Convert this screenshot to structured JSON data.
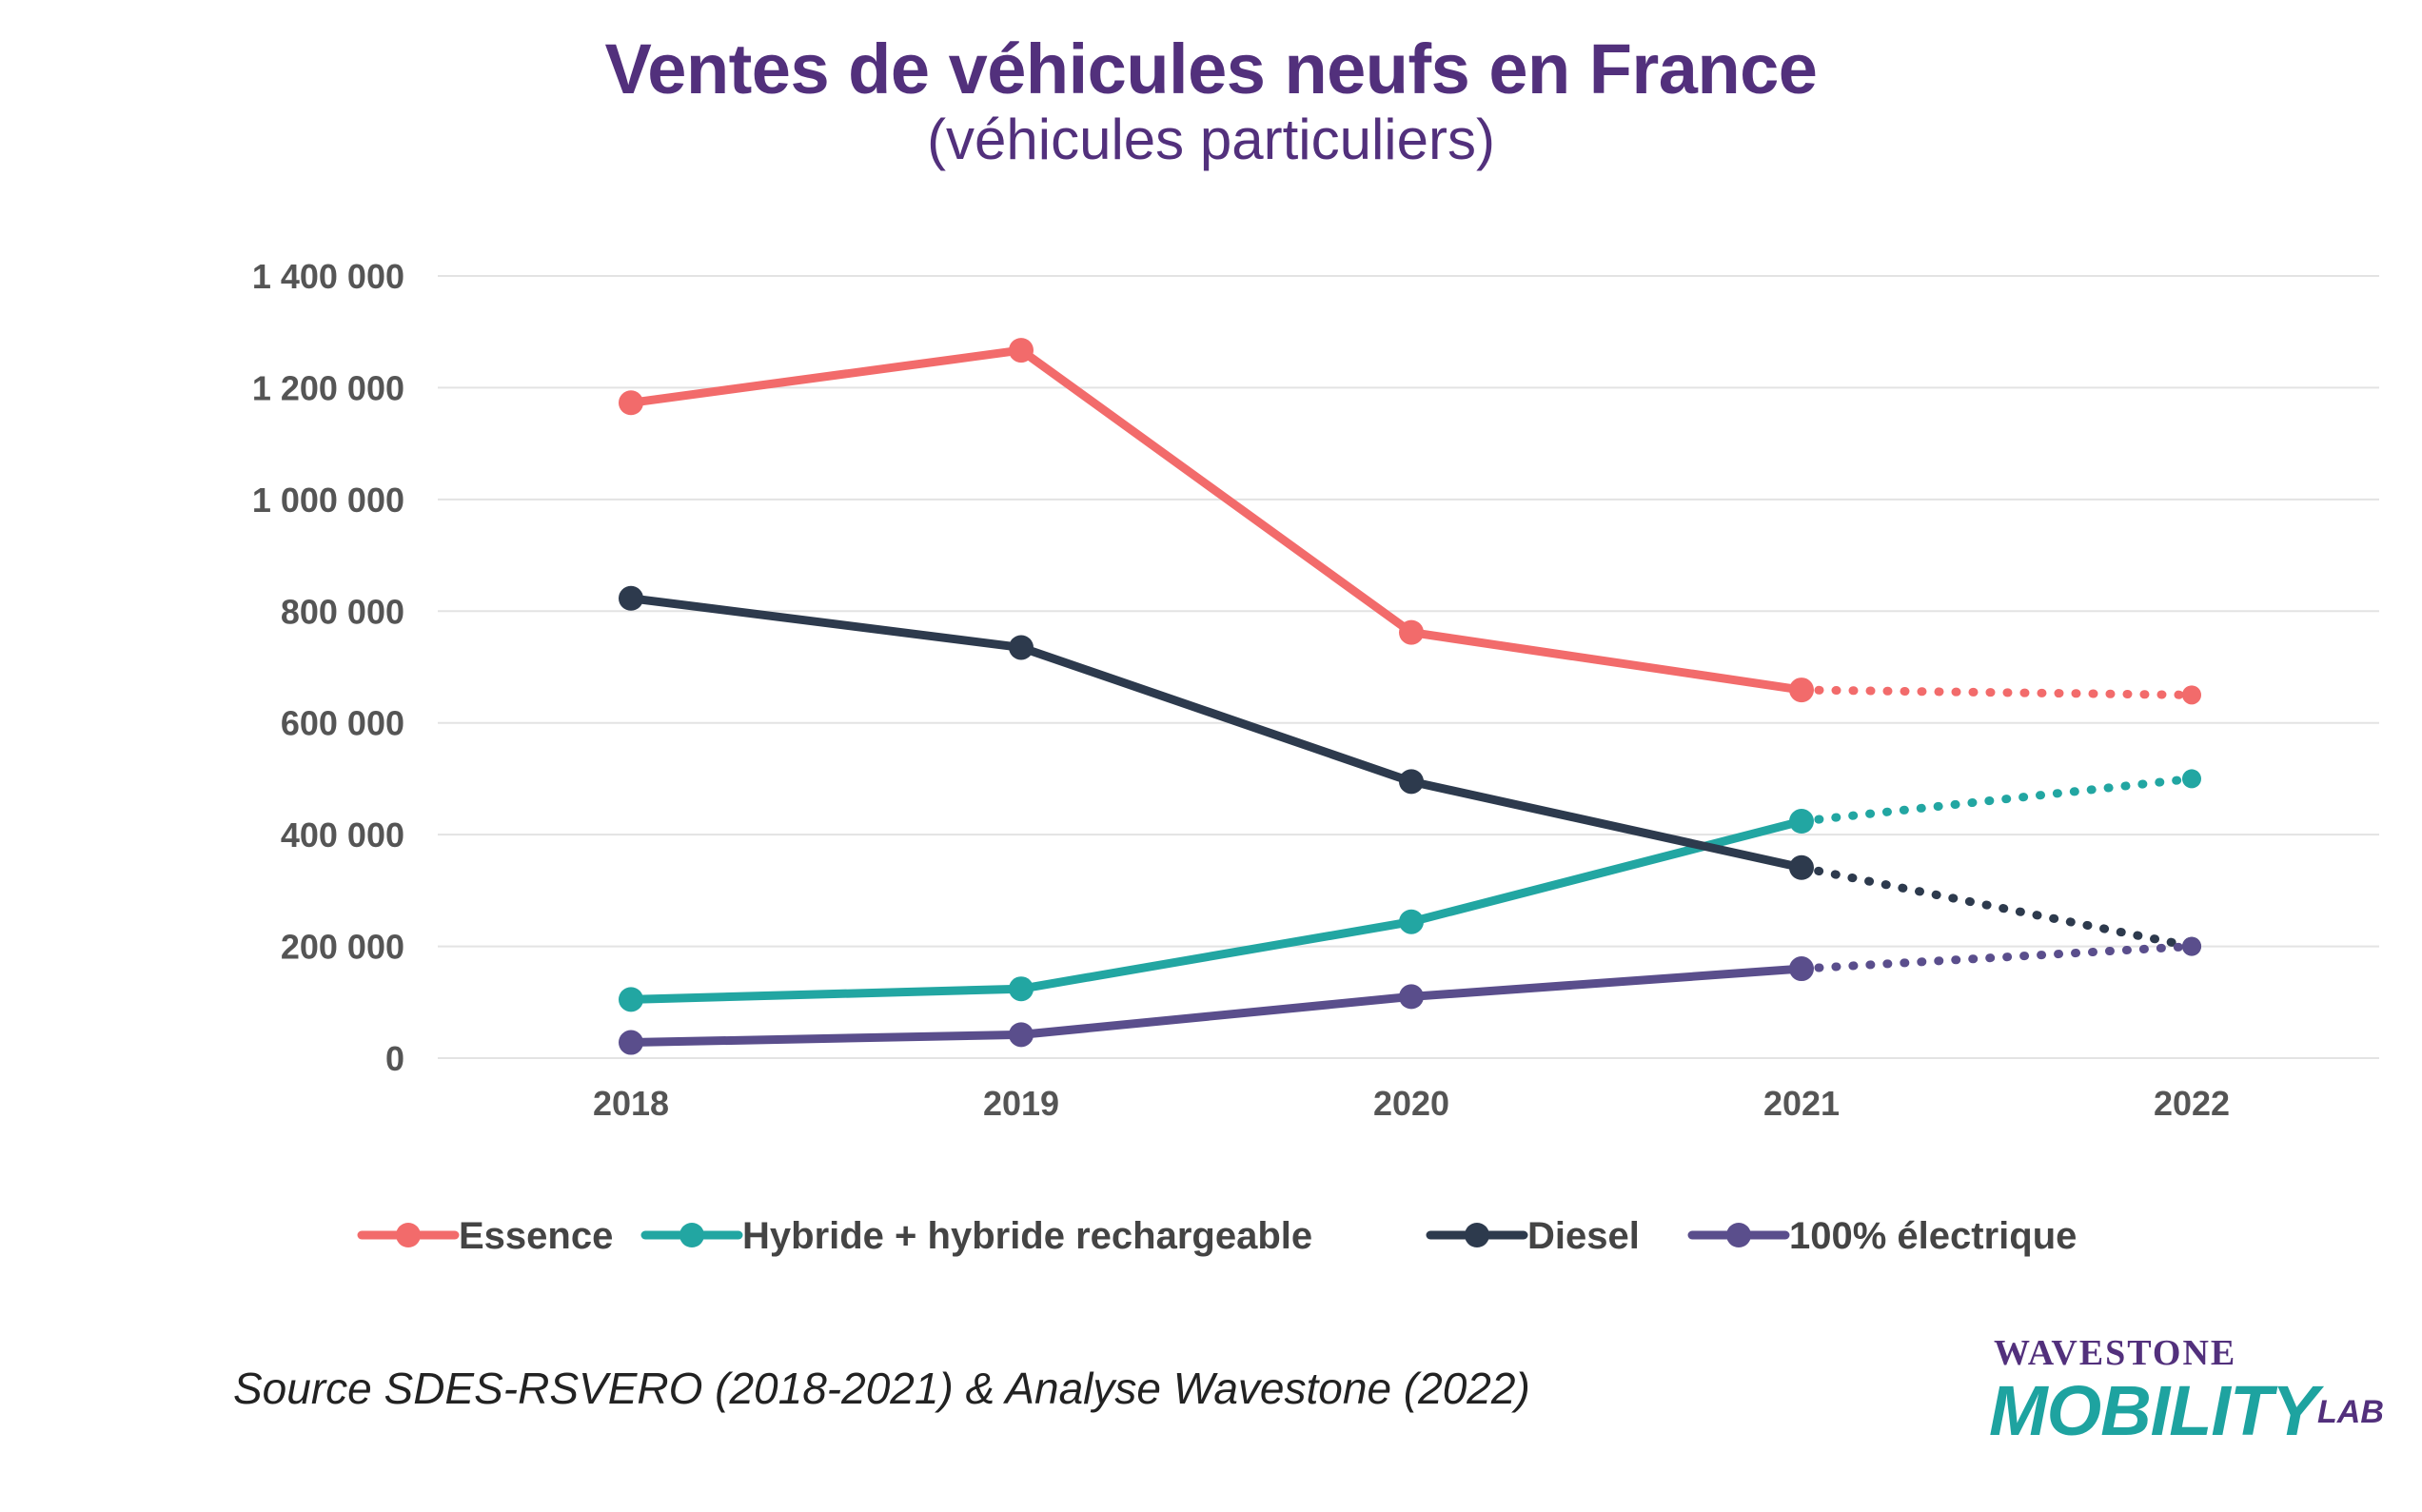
{
  "page": {
    "title": "Ventes de véhicules neufs en France",
    "subtitle": "(véhicules particuliers)",
    "source": "Source SDES-RSVERO (2018-2021) & Analyse Wavestone (2022)",
    "logo": {
      "top": "WAVESTONE",
      "main": "MOBILITY",
      "lab": "LAB"
    }
  },
  "chart_data": {
    "type": "line",
    "title": "Ventes de véhicules neufs en France",
    "subtitle": "(véhicules particuliers)",
    "x": [
      "2018",
      "2019",
      "2020",
      "2021",
      "2022"
    ],
    "ylim": [
      0,
      1400000
    ],
    "yticks": [
      0,
      200000,
      400000,
      600000,
      800000,
      1000000,
      1200000,
      1400000
    ],
    "ytick_labels": [
      "0",
      "200 000",
      "400 000",
      "600 000",
      "800 000",
      "1 000 000",
      "1 200 000",
      "1 400 000"
    ],
    "grid": true,
    "legend_position": "bottom",
    "projection": {
      "from": "2021",
      "to": "2022",
      "style": "dotted"
    },
    "series": [
      {
        "name": "Essence",
        "color": "#f26b6b",
        "values": [
          1173000,
          1267000,
          762000,
          659000,
          650000
        ]
      },
      {
        "name": "Hybride + hybride rechargeable",
        "color": "#22a6a2",
        "values": [
          105000,
          124000,
          244000,
          424000,
          500000
        ]
      },
      {
        "name": "Diesel",
        "color": "#2d3a4d",
        "values": [
          823000,
          735000,
          495000,
          341000,
          200000
        ]
      },
      {
        "name": "100% électrique",
        "color": "#5a4e8c",
        "values": [
          28000,
          42000,
          110000,
          160000,
          200000
        ]
      }
    ]
  }
}
